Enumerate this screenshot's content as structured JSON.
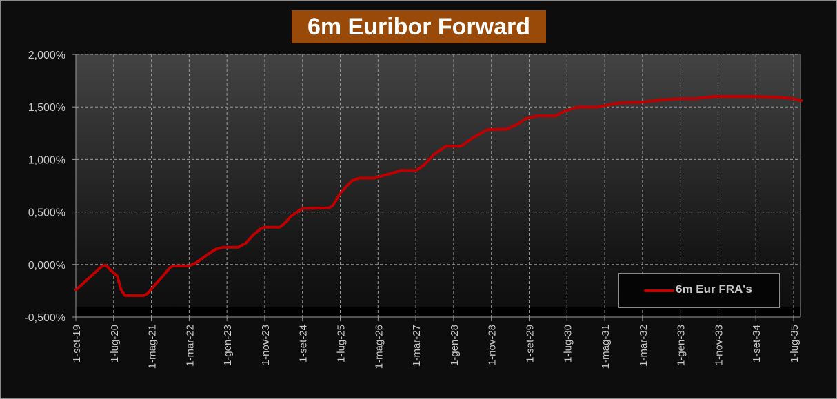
{
  "chart_data": {
    "type": "line",
    "title": "6m Euribor Forward",
    "xlabel": "",
    "ylabel": "",
    "ylim": [
      -0.5,
      2.0
    ],
    "xlim": [
      "2019-09",
      "2035-09"
    ],
    "grid": true,
    "legend_placement": "bottom-right",
    "y_ticks": [
      "-0,500%",
      "0,000%",
      "0,500%",
      "1,000%",
      "1,500%",
      "2,000%"
    ],
    "y_tick_values": [
      -0.5,
      0,
      0.5,
      1.0,
      1.5,
      2.0
    ],
    "x_ticks": [
      "1-set-19",
      "1-lug-20",
      "1-mag-21",
      "1-mar-22",
      "1-gen-23",
      "1-nov-23",
      "1-set-24",
      "1-lug-25",
      "1-mag-26",
      "1-mar-27",
      "1-gen-28",
      "1-nov-28",
      "1-set-29",
      "1-lug-30",
      "1-mag-31",
      "1-mar-32",
      "1-gen-33",
      "1-nov-33",
      "1-set-34",
      "1-lug-35"
    ],
    "x_tick_dates": [
      "2019-09",
      "2020-07",
      "2021-05",
      "2022-03",
      "2023-01",
      "2023-11",
      "2024-09",
      "2025-07",
      "2026-05",
      "2027-03",
      "2028-01",
      "2028-11",
      "2029-09",
      "2030-07",
      "2031-05",
      "2032-03",
      "2033-01",
      "2033-11",
      "2034-09",
      "2035-07"
    ],
    "series": [
      {
        "name": "6m Eur FRA's",
        "color": "#c00000",
        "points": [
          [
            "2019-09",
            -0.243
          ],
          [
            "2019-12",
            -0.145
          ],
          [
            "2020-02",
            -0.079
          ],
          [
            "2020-04",
            -0.013
          ],
          [
            "2020-05",
            -0.007
          ],
          [
            "2020-06",
            -0.046
          ],
          [
            "2020-08",
            -0.112
          ],
          [
            "2020-09",
            -0.243
          ],
          [
            "2020-10",
            -0.296
          ],
          [
            "2021-03",
            -0.296
          ],
          [
            "2021-04",
            -0.276
          ],
          [
            "2021-06",
            -0.191
          ],
          [
            "2021-08",
            -0.112
          ],
          [
            "2021-10",
            -0.026
          ],
          [
            "2021-11",
            -0.013
          ],
          [
            "2022-03",
            -0.013
          ],
          [
            "2022-05",
            0.02
          ],
          [
            "2022-08",
            0.099
          ],
          [
            "2022-10",
            0.145
          ],
          [
            "2022-12",
            0.164
          ],
          [
            "2023-04",
            0.164
          ],
          [
            "2023-06",
            0.204
          ],
          [
            "2023-08",
            0.283
          ],
          [
            "2023-10",
            0.342
          ],
          [
            "2023-11",
            0.355
          ],
          [
            "2024-03",
            0.355
          ],
          [
            "2024-04",
            0.382
          ],
          [
            "2024-06",
            0.461
          ],
          [
            "2024-09",
            0.533
          ],
          [
            "2025-04",
            0.539
          ],
          [
            "2025-05",
            0.559
          ],
          [
            "2025-07",
            0.678
          ],
          [
            "2025-10",
            0.796
          ],
          [
            "2025-12",
            0.822
          ],
          [
            "2026-04",
            0.822
          ],
          [
            "2026-08",
            0.862
          ],
          [
            "2026-11",
            0.895
          ],
          [
            "2027-03",
            0.895
          ],
          [
            "2027-05",
            0.941
          ],
          [
            "2027-08",
            1.053
          ],
          [
            "2027-11",
            1.125
          ],
          [
            "2028-03",
            1.125
          ],
          [
            "2028-06",
            1.204
          ],
          [
            "2028-10",
            1.283
          ],
          [
            "2029-03",
            1.289
          ],
          [
            "2029-06",
            1.336
          ],
          [
            "2029-08",
            1.388
          ],
          [
            "2029-11",
            1.414
          ],
          [
            "2030-04",
            1.414
          ],
          [
            "2030-06",
            1.454
          ],
          [
            "2030-08",
            1.48
          ],
          [
            "2030-10",
            1.5
          ],
          [
            "2031-03",
            1.5
          ],
          [
            "2031-06",
            1.52
          ],
          [
            "2031-09",
            1.539
          ],
          [
            "2032-03",
            1.546
          ],
          [
            "2032-08",
            1.566
          ],
          [
            "2033-01",
            1.579
          ],
          [
            "2033-05",
            1.579
          ],
          [
            "2033-10",
            1.599
          ],
          [
            "2034-08",
            1.599
          ],
          [
            "2035-03",
            1.592
          ],
          [
            "2035-07",
            1.579
          ],
          [
            "2035-09",
            1.559
          ]
        ]
      }
    ]
  }
}
